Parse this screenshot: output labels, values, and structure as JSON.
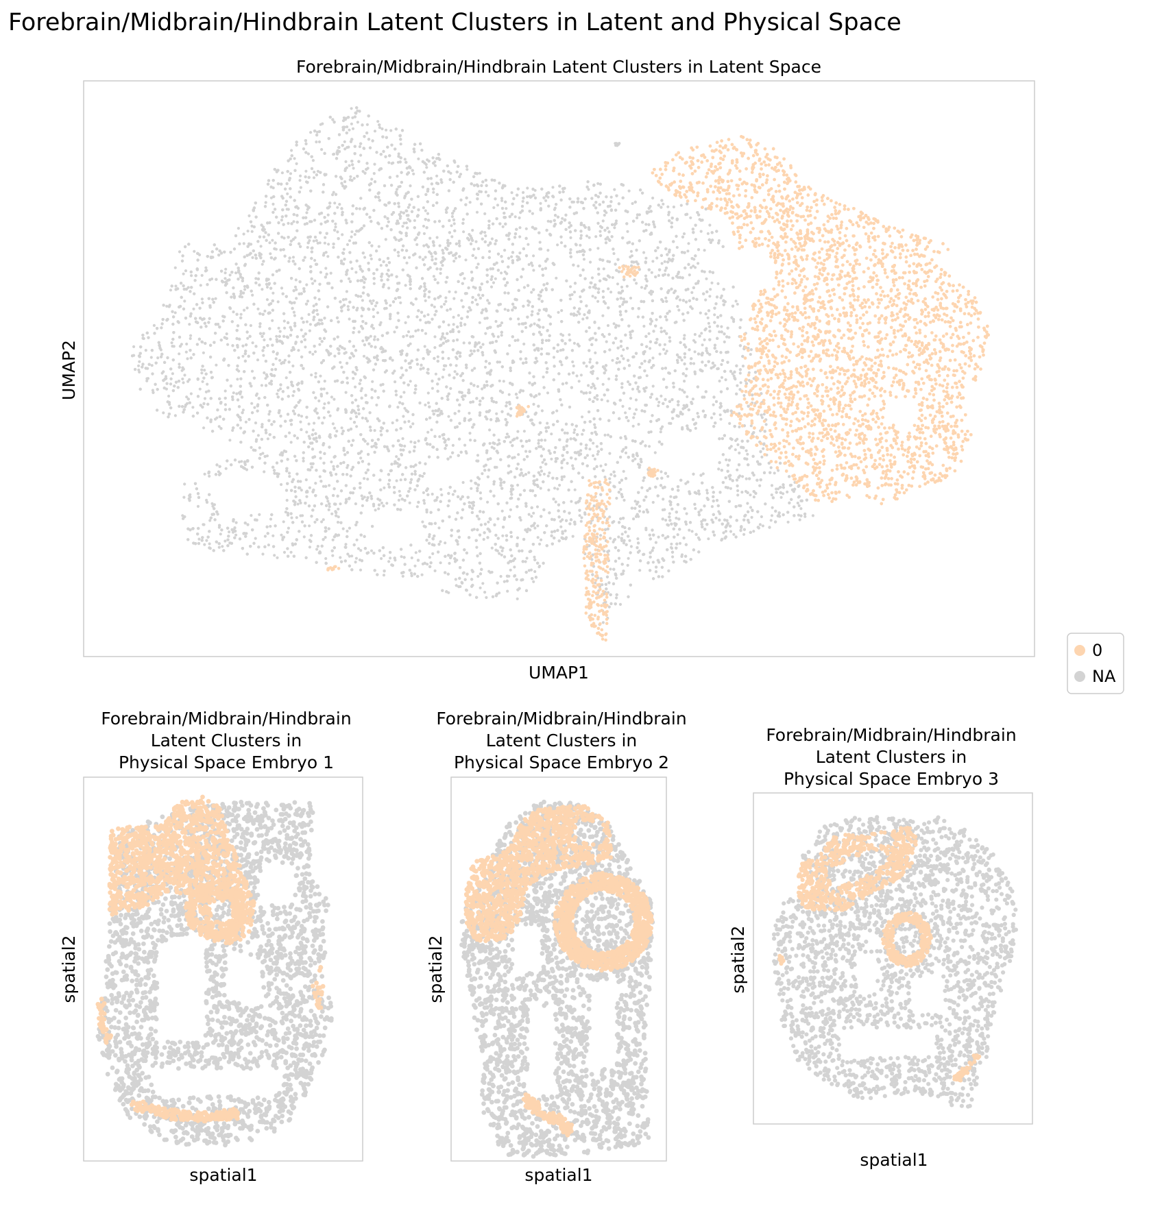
{
  "figure": {
    "title": "Forebrain/Midbrain/Hindbrain Latent Clusters in Latent and Physical Space"
  },
  "colors": {
    "cluster_0": "#fdd5b0",
    "na": "#d3d3d3",
    "frame": "#cccccc"
  },
  "legend": {
    "placement": "right of the UMAP panel",
    "entries": [
      {
        "label": "0",
        "color": "#fdd5b0"
      },
      {
        "label": "NA",
        "color": "#d3d3d3"
      }
    ]
  },
  "chart_data": [
    {
      "type": "scatter",
      "title": "Forebrain/Midbrain/Hindbrain Latent Clusters in Latent Space",
      "xlabel": "UMAP1",
      "ylabel": "UMAP2",
      "grid": false,
      "ticks": "none",
      "series": [
        {
          "name": "0"
        },
        {
          "name": "NA"
        }
      ]
    },
    {
      "type": "scatter",
      "title_lines": [
        "Forebrain/Midbrain/Hindbrain",
        "Latent Clusters in",
        "Physical Space Embryo 1"
      ],
      "xlabel": "spatial1",
      "ylabel": "spatial2",
      "grid": false,
      "ticks": "none",
      "series": [
        {
          "name": "0"
        },
        {
          "name": "NA"
        }
      ]
    },
    {
      "type": "scatter",
      "title_lines": [
        "Forebrain/Midbrain/Hindbrain",
        "Latent Clusters in",
        "Physical Space Embryo 2"
      ],
      "xlabel": "spatial1",
      "ylabel": "spatial2",
      "grid": false,
      "ticks": "none",
      "series": [
        {
          "name": "0"
        },
        {
          "name": "NA"
        }
      ]
    },
    {
      "type": "scatter",
      "title_lines": [
        "Forebrain/Midbrain/Hindbrain",
        "Latent Clusters in",
        "Physical Space Embryo 3"
      ],
      "xlabel": "spatial1",
      "ylabel": "spatial2",
      "grid": false,
      "ticks": "none",
      "series": [
        {
          "name": "0"
        },
        {
          "name": "NA"
        }
      ]
    }
  ]
}
